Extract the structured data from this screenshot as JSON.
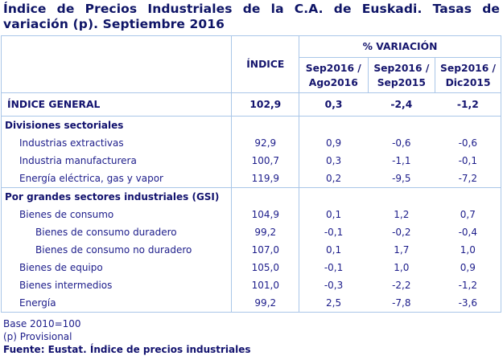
{
  "title": "Índice de Precios Industriales de la C.A. de Euskadi. Tasas de variación (p). Septiembre 2016",
  "header": {
    "indice": "ÍNDICE",
    "variacion": "% VARIACIÓN",
    "col1": [
      "Sep2016 /",
      "Ago2016"
    ],
    "col2": [
      "Sep2016 /",
      "Sep2015"
    ],
    "col3": [
      "Sep2016 /",
      "Dic2015"
    ]
  },
  "general": {
    "label": "ÍNDICE GENERAL",
    "indice": "102,9",
    "v1": "0,3",
    "v2": "-2,4",
    "v3": "-1,2"
  },
  "sections": [
    {
      "label": "Divisiones sectoriales",
      "rows": [
        {
          "label": "Industrias extractivas",
          "level": 1,
          "indice": "92,9",
          "v1": "0,9",
          "v2": "-0,6",
          "v3": "-0,6"
        },
        {
          "label": "Industria manufacturera",
          "level": 1,
          "indice": "100,7",
          "v1": "0,3",
          "v2": "-1,1",
          "v3": "-0,1"
        },
        {
          "label": "Energía eléctrica, gas y vapor",
          "level": 1,
          "indice": "119,9",
          "v1": "0,2",
          "v2": "-9,5",
          "v3": "-7,2"
        }
      ]
    },
    {
      "label": "Por grandes sectores industriales (GSI)",
      "rows": [
        {
          "label": "Bienes de consumo",
          "level": 1,
          "indice": "104,9",
          "v1": "0,1",
          "v2": "1,2",
          "v3": "0,7"
        },
        {
          "label": "Bienes de consumo duradero",
          "level": 2,
          "indice": "99,2",
          "v1": "-0,1",
          "v2": "-0,2",
          "v3": "-0,4"
        },
        {
          "label": "Bienes de consumo no duradero",
          "level": 2,
          "indice": "107,0",
          "v1": "0,1",
          "v2": "1,7",
          "v3": "1,0"
        },
        {
          "label": "Bienes de equipo",
          "level": 1,
          "indice": "105,0",
          "v1": "-0,1",
          "v2": "1,0",
          "v3": "0,9"
        },
        {
          "label": "Bienes intermedios",
          "level": 1,
          "indice": "101,0",
          "v1": "-0,3",
          "v2": "-2,2",
          "v3": "-1,2"
        },
        {
          "label": "Energía",
          "level": 1,
          "indice": "99,2",
          "v1": "2,5",
          "v2": "-7,8",
          "v3": "-3,6"
        }
      ]
    }
  ],
  "footer": {
    "base": "Base 2010=100",
    "provisional": "(p) Provisional",
    "source": "Fuente: Eustat. Índice de precios industriales"
  }
}
